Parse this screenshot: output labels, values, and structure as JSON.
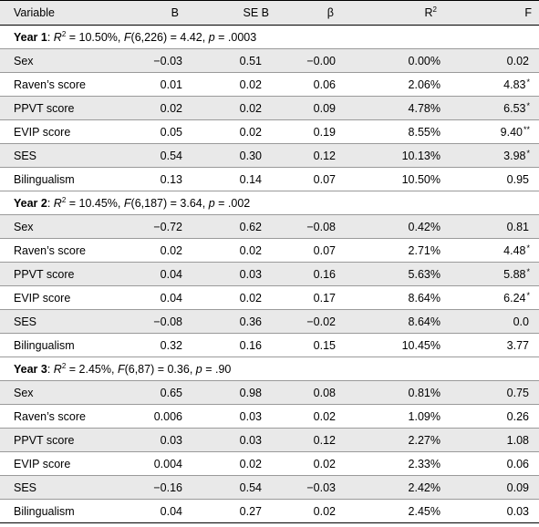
{
  "header": {
    "variable": "Variable",
    "b": "B",
    "se_b": "SE B",
    "beta": "β",
    "r2_base": "R",
    "r2_sup": "2",
    "f": "F"
  },
  "sections": [
    {
      "label": "Year 1",
      "r2_value": "10.50%,",
      "f_df": "(6,226)",
      "f_value": "4.42,",
      "p_value": ".0003",
      "rows": [
        {
          "variable": "Sex",
          "b": "−0.03",
          "se_b": "0.51",
          "beta": "−0.00",
          "r2": "0.00%",
          "f": "0.02",
          "sig": ""
        },
        {
          "variable": "Raven’s score",
          "b": "0.01",
          "se_b": "0.02",
          "beta": "0.06",
          "r2": "2.06%",
          "f": "4.83",
          "sig": "*"
        },
        {
          "variable": "PPVT score",
          "b": "0.02",
          "se_b": "0.02",
          "beta": "0.09",
          "r2": "4.78%",
          "f": "6.53",
          "sig": "*"
        },
        {
          "variable": "EVIP score",
          "b": "0.05",
          "se_b": "0.02",
          "beta": "0.19",
          "r2": "8.55%",
          "f": "9.40",
          "sig": "**"
        },
        {
          "variable": "SES",
          "b": "0.54",
          "se_b": "0.30",
          "beta": "0.12",
          "r2": "10.13%",
          "f": "3.98",
          "sig": "*"
        },
        {
          "variable": "Bilingualism",
          "b": "0.13",
          "se_b": "0.14",
          "beta": "0.07",
          "r2": "10.50%",
          "f": "0.95",
          "sig": ""
        }
      ]
    },
    {
      "label": "Year 2",
      "r2_value": "10.45%,",
      "f_df": "(6,187)",
      "f_value": "3.64,",
      "p_value": ".002",
      "rows": [
        {
          "variable": "Sex",
          "b": "−0.72",
          "se_b": "0.62",
          "beta": "−0.08",
          "r2": "0.42%",
          "f": "0.81",
          "sig": ""
        },
        {
          "variable": "Raven’s score",
          "b": "0.02",
          "se_b": "0.02",
          "beta": "0.07",
          "r2": "2.71%",
          "f": "4.48",
          "sig": "*"
        },
        {
          "variable": "PPVT score",
          "b": "0.04",
          "se_b": "0.03",
          "beta": "0.16",
          "r2": "5.63%",
          "f": "5.88",
          "sig": "*"
        },
        {
          "variable": "EVIP score",
          "b": "0.04",
          "se_b": "0.02",
          "beta": "0.17",
          "r2": "8.64%",
          "f": "6.24",
          "sig": "*"
        },
        {
          "variable": "SES",
          "b": "−0.08",
          "se_b": "0.36",
          "beta": "−0.02",
          "r2": "8.64%",
          "f": "0.0",
          "sig": ""
        },
        {
          "variable": "Bilingualism",
          "b": "0.32",
          "se_b": "0.16",
          "beta": "0.15",
          "r2": "10.45%",
          "f": "3.77",
          "sig": ""
        }
      ]
    },
    {
      "label": "Year 3",
      "r2_value": "2.45%,",
      "f_df": "(6,87)",
      "f_value": "0.36,",
      "p_value": ".90",
      "rows": [
        {
          "variable": "Sex",
          "b": "0.65",
          "se_b": "0.98",
          "beta": "0.08",
          "r2": "0.81%",
          "f": "0.75",
          "sig": ""
        },
        {
          "variable": "Raven’s score",
          "b": "0.006",
          "se_b": "0.03",
          "beta": "0.02",
          "r2": "1.09%",
          "f": "0.26",
          "sig": ""
        },
        {
          "variable": "PPVT score",
          "b": "0.03",
          "se_b": "0.03",
          "beta": "0.12",
          "r2": "2.27%",
          "f": "1.08",
          "sig": ""
        },
        {
          "variable": "EVIP score",
          "b": "0.004",
          "se_b": "0.02",
          "beta": "0.02",
          "r2": "2.33%",
          "f": "0.06",
          "sig": ""
        },
        {
          "variable": "SES",
          "b": "−0.16",
          "se_b": "0.54",
          "beta": "−0.03",
          "r2": "2.42%",
          "f": "0.09",
          "sig": ""
        },
        {
          "variable": "Bilingualism",
          "b": "0.04",
          "se_b": "0.27",
          "beta": "0.02",
          "r2": "2.45%",
          "f": "0.03",
          "sig": ""
        }
      ]
    }
  ]
}
